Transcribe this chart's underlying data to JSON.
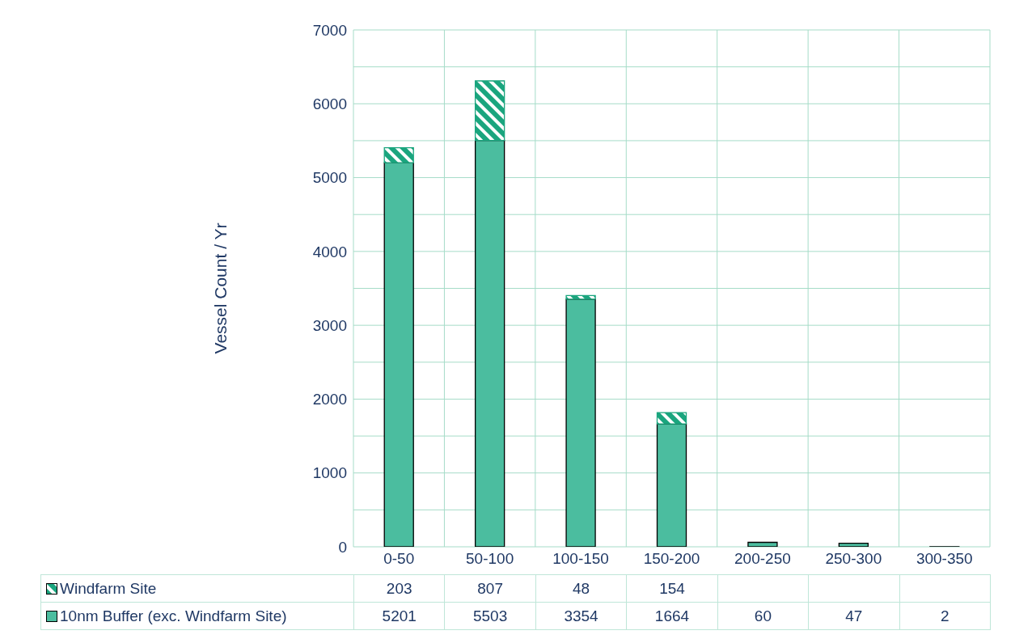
{
  "chart_data": {
    "type": "bar",
    "ylabel": "Vessel Count / Yr",
    "stacked": true,
    "categories": [
      "0-50",
      "50-100",
      "100-150",
      "150-200",
      "200-250",
      "250-300",
      "300-350"
    ],
    "series": [
      {
        "name": "10nm Buffer (exc. Windfarm Site)",
        "color": "#4bbd9f",
        "values": [
          5201,
          5503,
          3354,
          1664,
          60,
          47,
          2
        ]
      },
      {
        "name": "Windfarm Site",
        "color": "#1aa57e",
        "values": [
          203,
          807,
          48,
          154,
          null,
          null,
          null
        ]
      }
    ],
    "ylim": [
      0,
      7000
    ],
    "yticks": [
      0,
      {
        "value": 500,
        "label": null
      },
      1000,
      {
        "value": 1500,
        "label": null
      },
      2000,
      {
        "value": 2500,
        "label": null
      },
      3000,
      {
        "value": 3500,
        "label": null
      },
      4000,
      {
        "value": 4500,
        "label": null
      },
      5000,
      {
        "value": 5500,
        "label": null
      },
      6000,
      {
        "value": 6500,
        "label": null
      },
      7000
    ],
    "grid": true,
    "legend": "bottom",
    "data_labels": true
  }
}
